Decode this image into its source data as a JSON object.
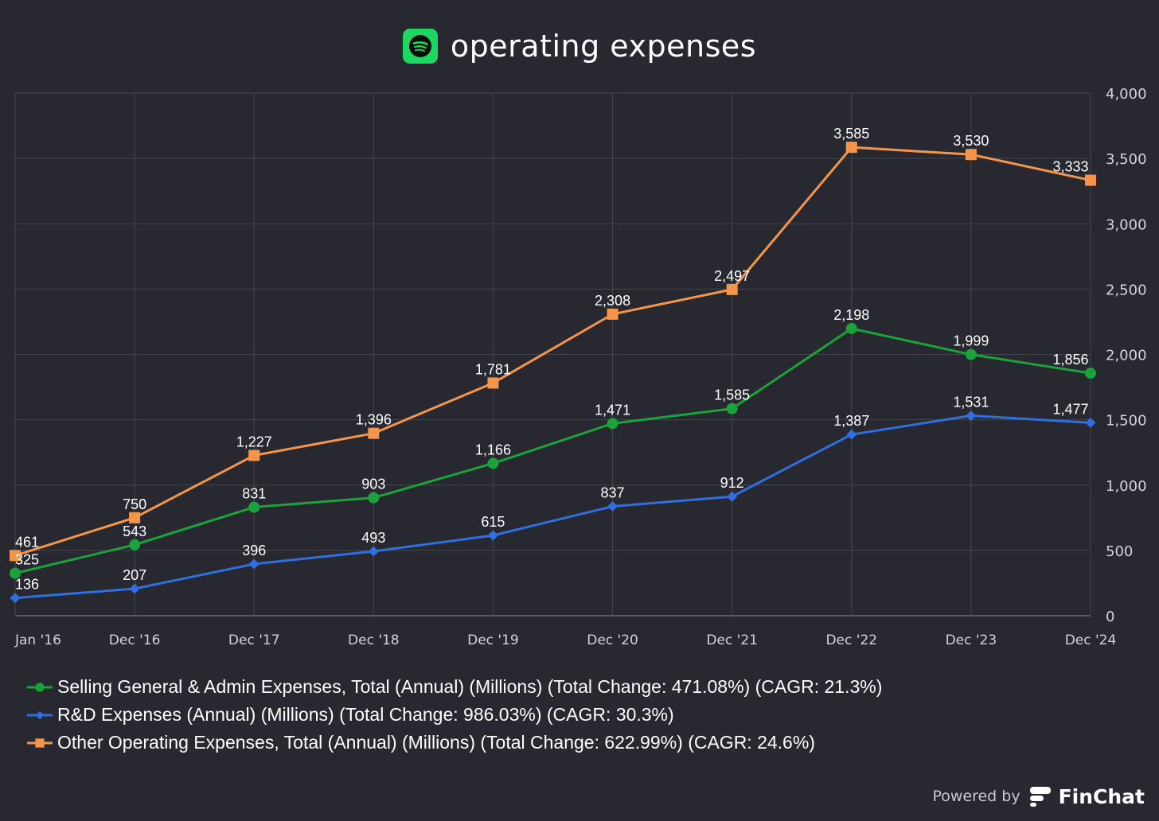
{
  "header": {
    "title": "operating expenses",
    "logo_icon": "spotify-logo-icon",
    "accent": "#1ed760"
  },
  "footer": {
    "powered_by": "Powered by",
    "brand": "FinChat",
    "logo_icon": "finchat-logo-icon"
  },
  "chart_data": {
    "type": "line",
    "title": "operating expenses",
    "categories": [
      "Jan '16",
      "Dec '16",
      "Dec '17",
      "Dec '18",
      "Dec '19",
      "Dec '20",
      "Dec '21",
      "Dec '22",
      "Dec '23",
      "Dec '24"
    ],
    "ylim": [
      0,
      4000
    ],
    "yticks": [
      0,
      500,
      1000,
      1500,
      2000,
      2500,
      3000,
      3500,
      4000
    ],
    "ytick_labels": [
      "0",
      "500",
      "1,000",
      "1,500",
      "2,000",
      "2,500",
      "3,000",
      "3,500",
      "4,000"
    ],
    "y_axis_side": "right",
    "grid": true,
    "legend_position": "bottom",
    "series": [
      {
        "name": "Selling General & Admin Expenses, Total (Annual) (Millions) (Total Change: 471.08%) (CAGR: 21.3%)",
        "color": "#1aa33a",
        "marker": "circle",
        "values": [
          325,
          543,
          831,
          903,
          1166,
          1471,
          1585,
          2198,
          1999,
          1856
        ],
        "labels": [
          "325",
          "543",
          "831",
          "903",
          "1,166",
          "1,471",
          "1,585",
          "2,198",
          "1,999",
          "1,856"
        ]
      },
      {
        "name": "R&D Expenses (Annual) (Millions) (Total Change: 986.03%) (CAGR: 30.3%)",
        "color": "#2f6fe0",
        "marker": "diamond",
        "values": [
          136,
          207,
          396,
          493,
          615,
          837,
          912,
          1387,
          1531,
          1477
        ],
        "labels": [
          "136",
          "207",
          "396",
          "493",
          "615",
          "837",
          "912",
          "1,387",
          "1,531",
          "1,477"
        ]
      },
      {
        "name": "Other Operating Expenses, Total (Annual) (Millions) (Total Change: 622.99%) (CAGR: 24.6%)",
        "color": "#f5954a",
        "marker": "square",
        "values": [
          461,
          750,
          1227,
          1396,
          1781,
          2308,
          2497,
          3585,
          3530,
          3333
        ],
        "labels": [
          "461",
          "750",
          "1,227",
          "1,396",
          "1,781",
          "2,308",
          "2,497",
          "3,585",
          "3,530",
          "3,333"
        ]
      }
    ]
  }
}
